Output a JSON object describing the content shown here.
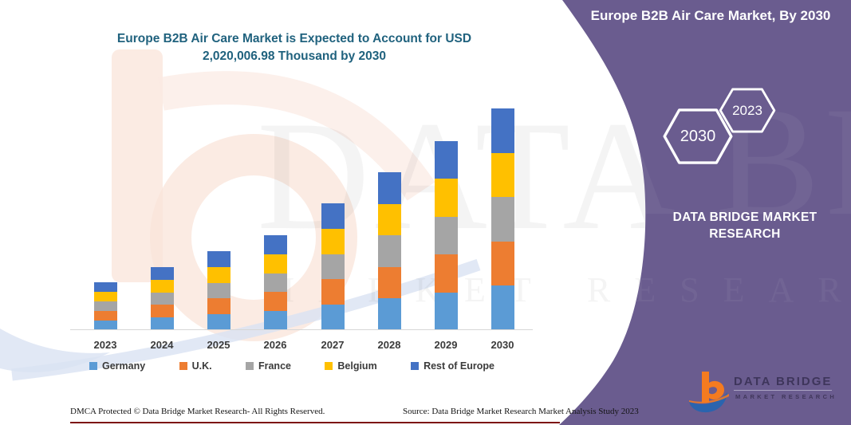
{
  "header": {
    "title": "Europe B2B Air Care Market, By 2030"
  },
  "title": {
    "line1": "Europe B2B Air Care Market is Expected to Account for USD",
    "line2": "2,020,006.98 Thousand by 2030"
  },
  "chart_data": {
    "type": "bar",
    "stacked": true,
    "title": "Europe B2B Air Care Market is Expected to Account for USD 2,020,006.98 Thousand by 2030",
    "unit": "USD Thousand",
    "categories": [
      "2023",
      "2024",
      "2025",
      "2026",
      "2027",
      "2028",
      "2029",
      "2030"
    ],
    "series": [
      {
        "name": "Germany",
        "color": "#5B9BD5",
        "values": [
          87200,
          114800,
          143900,
          172900,
          231100,
          287700,
          344400,
          404001.4
        ]
      },
      {
        "name": "U.K.",
        "color": "#ED7D31",
        "values": [
          87200,
          114800,
          143900,
          172900,
          231100,
          287700,
          344400,
          404001.4
        ]
      },
      {
        "name": "France",
        "color": "#A5A5A5",
        "values": [
          87200,
          114800,
          143900,
          172900,
          231100,
          287700,
          344400,
          404001.4
        ]
      },
      {
        "name": "Belgium",
        "color": "#FFC000",
        "values": [
          87200,
          114800,
          143900,
          172900,
          231100,
          287700,
          344400,
          404001.4
        ]
      },
      {
        "name": "Rest of Europe",
        "color": "#4472C4",
        "values": [
          87200,
          114800,
          143900,
          172900,
          231100,
          287700,
          344400,
          404001.4
        ]
      }
    ],
    "projected_total_2030": "2,020,006.98",
    "y_axis_visible": false,
    "gridlines": false,
    "legend_position": "bottom"
  },
  "side_panel": {
    "hexagon_large": "2030",
    "hexagon_small": "2023",
    "brand_line1": "DATA BRIDGE MARKET",
    "brand_line2": "RESEARCH",
    "panel_color": "#6A5C8F"
  },
  "logo": {
    "name": "DATA BRIDGE",
    "subtitle": "MARKET RESEARCH"
  },
  "watermark": {
    "line1": "DATA BRIDGE",
    "line2": "MARKET RESEARCH"
  },
  "footer": {
    "left": "DMCA Protected © Data Bridge Market Research-  All Rights Reserved.",
    "right": "Source: Data Bridge Market Research  Market Analysis Study 2023"
  }
}
